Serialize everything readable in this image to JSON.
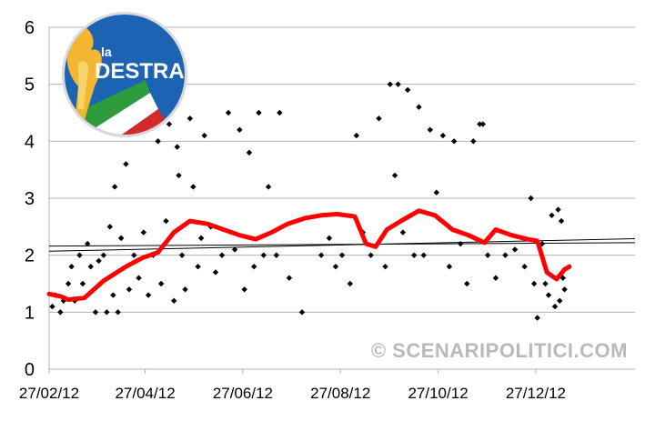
{
  "chart_data": {
    "type": "scatter",
    "x_tick_labels": [
      "27/02/12",
      "27/04/12",
      "27/06/12",
      "27/08/12",
      "27/10/12",
      "27/12/12"
    ],
    "y_tick_labels": [
      "0",
      "1",
      "2",
      "3",
      "4",
      "5",
      "6"
    ],
    "xlim": [
      "2012-02-27",
      "2013-02-27"
    ],
    "ylim": [
      0,
      6
    ],
    "grid": "horizontal",
    "series": [
      {
        "kind": "points",
        "marker": "diamond",
        "color": "#000000",
        "points": [
          [
            "2012-02-29",
            1.1
          ],
          [
            "2012-03-02",
            1.3
          ],
          [
            "2012-03-05",
            1.0
          ],
          [
            "2012-03-07",
            1.2
          ],
          [
            "2012-03-10",
            1.5
          ],
          [
            "2012-03-12",
            1.8
          ],
          [
            "2012-03-14",
            1.2
          ],
          [
            "2012-03-17",
            2.0
          ],
          [
            "2012-03-19",
            1.5
          ],
          [
            "2012-03-22",
            2.2
          ],
          [
            "2012-03-24",
            1.8
          ],
          [
            "2012-03-27",
            1.0
          ],
          [
            "2012-03-29",
            1.9
          ],
          [
            "2012-04-01",
            2.0
          ],
          [
            "2012-04-03",
            1.0
          ],
          [
            "2012-04-05",
            2.5
          ],
          [
            "2012-04-07",
            1.3
          ],
          [
            "2012-04-08",
            3.2
          ],
          [
            "2012-04-10",
            1.0
          ],
          [
            "2012-04-12",
            2.3
          ],
          [
            "2012-04-15",
            3.6
          ],
          [
            "2012-04-17",
            1.4
          ],
          [
            "2012-04-20",
            2.0
          ],
          [
            "2012-04-23",
            1.6
          ],
          [
            "2012-04-26",
            2.4
          ],
          [
            "2012-04-29",
            1.3
          ],
          [
            "2012-05-02",
            2.0
          ],
          [
            "2012-05-05",
            4.0
          ],
          [
            "2012-05-07",
            1.5
          ],
          [
            "2012-05-10",
            2.6
          ],
          [
            "2012-05-12",
            4.3
          ],
          [
            "2012-05-15",
            1.2
          ],
          [
            "2012-05-17",
            3.9
          ],
          [
            "2012-05-18",
            3.4
          ],
          [
            "2012-05-20",
            2.0
          ],
          [
            "2012-05-22",
            1.4
          ],
          [
            "2012-05-25",
            4.4
          ],
          [
            "2012-05-27",
            3.2
          ],
          [
            "2012-05-30",
            1.8
          ],
          [
            "2012-06-01",
            2.3
          ],
          [
            "2012-06-03",
            4.1
          ],
          [
            "2012-06-07",
            2.5
          ],
          [
            "2012-06-10",
            1.7
          ],
          [
            "2012-06-14",
            2.0
          ],
          [
            "2012-06-18",
            4.5
          ],
          [
            "2012-06-22",
            2.1
          ],
          [
            "2012-06-25",
            4.2
          ],
          [
            "2012-06-28",
            1.4
          ],
          [
            "2012-07-01",
            3.8
          ],
          [
            "2012-07-04",
            1.8
          ],
          [
            "2012-07-07",
            4.5
          ],
          [
            "2012-07-10",
            2.0
          ],
          [
            "2012-07-13",
            3.2
          ],
          [
            "2012-07-18",
            2.0
          ],
          [
            "2012-07-20",
            4.5
          ],
          [
            "2012-07-26",
            1.6
          ],
          [
            "2012-08-03",
            1.0
          ],
          [
            "2012-08-15",
            2.0
          ],
          [
            "2012-08-20",
            2.3
          ],
          [
            "2012-08-24",
            1.8
          ],
          [
            "2012-08-28",
            2.0
          ],
          [
            "2012-09-02",
            1.5
          ],
          [
            "2012-09-06",
            4.1
          ],
          [
            "2012-09-10",
            2.4
          ],
          [
            "2012-09-15",
            2.0
          ],
          [
            "2012-09-20",
            4.4
          ],
          [
            "2012-09-24",
            1.8
          ],
          [
            "2012-09-27",
            5.0
          ],
          [
            "2012-09-30",
            3.4
          ],
          [
            "2012-10-02",
            5.0
          ],
          [
            "2012-10-05",
            2.4
          ],
          [
            "2012-10-08",
            4.9
          ],
          [
            "2012-10-12",
            2.0
          ],
          [
            "2012-10-15",
            4.6
          ],
          [
            "2012-10-18",
            2.0
          ],
          [
            "2012-10-22",
            4.2
          ],
          [
            "2012-10-26",
            3.1
          ],
          [
            "2012-10-30",
            4.1
          ],
          [
            "2012-11-03",
            1.8
          ],
          [
            "2012-11-06",
            4.0
          ],
          [
            "2012-11-10",
            2.2
          ],
          [
            "2012-11-14",
            1.5
          ],
          [
            "2012-11-18",
            4.0
          ],
          [
            "2012-11-22",
            4.3
          ],
          [
            "2012-11-24",
            4.3
          ],
          [
            "2012-11-27",
            2.0
          ],
          [
            "2012-12-02",
            1.6
          ],
          [
            "2012-12-08",
            2.0
          ],
          [
            "2012-12-14",
            2.1
          ],
          [
            "2012-12-20",
            1.8
          ],
          [
            "2012-12-24",
            3.0
          ],
          [
            "2012-12-26",
            1.5
          ],
          [
            "2012-12-28",
            0.9
          ],
          [
            "2012-12-31",
            2.2
          ],
          [
            "2013-01-02",
            1.5
          ],
          [
            "2013-01-04",
            1.3
          ],
          [
            "2013-01-06",
            2.7
          ],
          [
            "2013-01-08",
            1.1
          ],
          [
            "2013-01-10",
            2.8
          ],
          [
            "2013-01-11",
            1.2
          ],
          [
            "2013-01-12",
            2.6
          ],
          [
            "2013-01-13",
            1.6
          ],
          [
            "2013-01-14",
            1.4
          ]
        ]
      },
      {
        "kind": "line",
        "color": "#ff0000",
        "points": [
          [
            "2012-02-27",
            1.32
          ],
          [
            "2012-03-05",
            1.28
          ],
          [
            "2012-03-10",
            1.22
          ],
          [
            "2012-03-20",
            1.25
          ],
          [
            "2012-04-01",
            1.55
          ],
          [
            "2012-04-15",
            1.8
          ],
          [
            "2012-04-25",
            1.95
          ],
          [
            "2012-05-05",
            2.05
          ],
          [
            "2012-05-15",
            2.4
          ],
          [
            "2012-05-25",
            2.6
          ],
          [
            "2012-06-05",
            2.55
          ],
          [
            "2012-06-15",
            2.45
          ],
          [
            "2012-06-25",
            2.35
          ],
          [
            "2012-07-05",
            2.28
          ],
          [
            "2012-07-15",
            2.4
          ],
          [
            "2012-07-25",
            2.55
          ],
          [
            "2012-08-05",
            2.65
          ],
          [
            "2012-08-15",
            2.7
          ],
          [
            "2012-08-25",
            2.72
          ],
          [
            "2012-09-05",
            2.68
          ],
          [
            "2012-09-12",
            2.2
          ],
          [
            "2012-09-18",
            2.15
          ],
          [
            "2012-09-25",
            2.45
          ],
          [
            "2012-10-05",
            2.62
          ],
          [
            "2012-10-15",
            2.78
          ],
          [
            "2012-10-25",
            2.7
          ],
          [
            "2012-11-05",
            2.45
          ],
          [
            "2012-11-15",
            2.35
          ],
          [
            "2012-11-25",
            2.22
          ],
          [
            "2012-12-02",
            2.45
          ],
          [
            "2012-12-12",
            2.35
          ],
          [
            "2012-12-22",
            2.28
          ],
          [
            "2012-12-28",
            2.25
          ],
          [
            "2013-01-03",
            1.7
          ],
          [
            "2013-01-09",
            1.58
          ],
          [
            "2013-01-14",
            1.75
          ],
          [
            "2013-01-17",
            1.8
          ]
        ]
      },
      {
        "kind": "trendline",
        "color": "#000000",
        "points": [
          [
            "2012-02-27",
            2.07
          ],
          [
            "2013-02-27",
            2.29
          ]
        ]
      },
      {
        "kind": "trendline",
        "color": "#000000",
        "points": [
          [
            "2012-02-27",
            2.16
          ],
          [
            "2013-02-27",
            2.22
          ]
        ]
      }
    ]
  },
  "watermark": "© SCENARIPOLITICI.COM",
  "logo": {
    "small_word": "la",
    "big_word": "DESTRA",
    "colors": {
      "ring": "#1d63b4",
      "flame": "#f2b630",
      "green": "#2e9c3c",
      "white": "#ffffff",
      "red": "#d42a2a"
    }
  }
}
